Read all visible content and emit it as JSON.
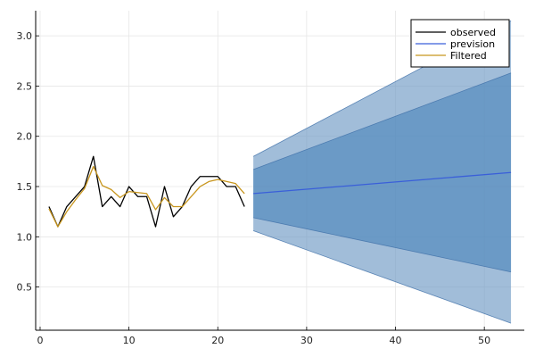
{
  "chart_data": {
    "type": "line",
    "title": "",
    "xlabel": "",
    "ylabel": "",
    "xlim": [
      -0.5,
      54.5
    ],
    "ylim": [
      0.07,
      3.25
    ],
    "xticks": [
      0,
      10,
      20,
      30,
      40,
      50
    ],
    "yticks": [
      0.5,
      1.0,
      1.5,
      2.0,
      2.5,
      3.0
    ],
    "xtick_labels": [
      "0",
      "10",
      "20",
      "30",
      "40",
      "50"
    ],
    "ytick_labels": [
      "0.5",
      "1.0",
      "1.5",
      "2.0",
      "2.5",
      "3.0"
    ],
    "grid": true,
    "legend_position": "top-right",
    "series": [
      {
        "name": "observed",
        "color": "#000000",
        "x": [
          1,
          2,
          3,
          4,
          5,
          6,
          7,
          8,
          9,
          10,
          11,
          12,
          13,
          14,
          15,
          16,
          17,
          18,
          19,
          20,
          21,
          22,
          23
        ],
        "y": [
          1.3,
          1.1,
          1.3,
          1.4,
          1.5,
          1.8,
          1.3,
          1.4,
          1.3,
          1.5,
          1.4,
          1.4,
          1.1,
          1.5,
          1.2,
          1.3,
          1.5,
          1.6,
          1.6,
          1.6,
          1.5,
          1.5,
          1.3
        ]
      },
      {
        "name": "prevision",
        "color": "#3a5fd9",
        "x": [
          24,
          53
        ],
        "y": [
          1.43,
          1.64
        ]
      },
      {
        "name": "Filtered",
        "color": "#c8961e",
        "x": [
          1,
          2,
          3,
          4,
          5,
          6,
          7,
          8,
          9,
          10,
          11,
          12,
          13,
          14,
          15,
          16,
          17,
          18,
          19,
          20,
          21,
          22,
          23
        ],
        "y": [
          1.28,
          1.1,
          1.25,
          1.37,
          1.48,
          1.7,
          1.51,
          1.47,
          1.39,
          1.45,
          1.44,
          1.43,
          1.27,
          1.39,
          1.3,
          1.3,
          1.4,
          1.5,
          1.55,
          1.57,
          1.55,
          1.53,
          1.43
        ]
      }
    ],
    "bands": [
      {
        "color": "#6f9ac4",
        "x": [
          24,
          53
        ],
        "lower": [
          1.06,
          0.14
        ],
        "upper": [
          1.8,
          3.15
        ]
      },
      {
        "color": "#4f87bb",
        "x": [
          24,
          53
        ],
        "lower": [
          1.19,
          0.65
        ],
        "upper": [
          1.67,
          2.63
        ]
      }
    ]
  }
}
